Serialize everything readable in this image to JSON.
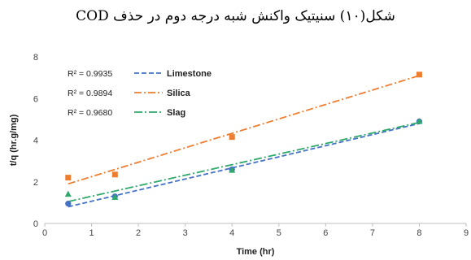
{
  "caption": "شکل(۱۰) سنیتیک واکنش شبه درجه دوم در حذف COD",
  "chart_data": {
    "type": "scatter",
    "xlabel": "Time (hr)",
    "ylabel": "t/q (hr.g/mg)",
    "xlim": [
      0,
      9
    ],
    "ylim": [
      0,
      8
    ],
    "xticks": [
      0,
      1,
      2,
      3,
      4,
      5,
      6,
      7,
      8,
      9
    ],
    "yticks": [
      0,
      2,
      4,
      6,
      8
    ],
    "grid": false,
    "legend_position": "top-left",
    "series": [
      {
        "name": "Limestone",
        "r2": "R² = 0.9935",
        "color": "#4472C4",
        "marker": "circle",
        "x": [
          0.5,
          1.5,
          4,
          8
        ],
        "y": [
          0.95,
          1.3,
          2.6,
          4.9
        ],
        "trend": {
          "x": [
            0.5,
            8
          ],
          "y": [
            0.8,
            4.8
          ]
        }
      },
      {
        "name": "Silica",
        "r2": "R² = 0.9894",
        "color": "#ED7D31",
        "marker": "square",
        "x": [
          0.5,
          1.5,
          4,
          8
        ],
        "y": [
          2.2,
          2.35,
          4.15,
          7.15
        ],
        "trend": {
          "x": [
            0.5,
            8
          ],
          "y": [
            1.9,
            7.1
          ]
        }
      },
      {
        "name": "Slag",
        "r2": "R² = 0.9680",
        "color": "#2EA86B",
        "marker": "triangle",
        "x": [
          0.5,
          1.5,
          4,
          8
        ],
        "y": [
          1.4,
          1.25,
          2.55,
          4.9
        ],
        "trend": {
          "x": [
            0.5,
            8
          ],
          "y": [
            1.05,
            4.85
          ]
        }
      }
    ]
  }
}
